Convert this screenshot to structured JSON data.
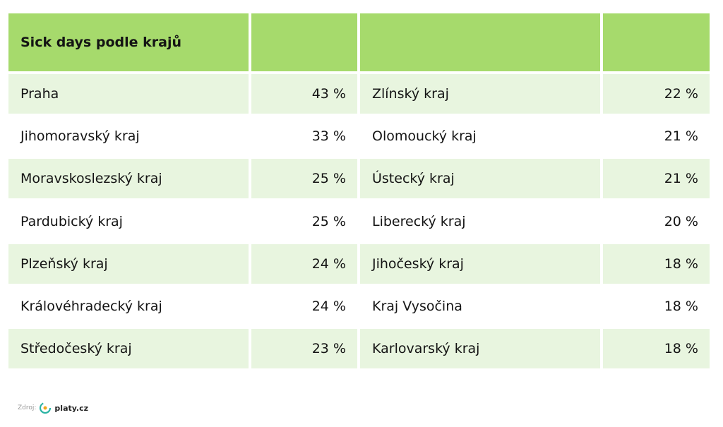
{
  "header": {
    "title": "Sick days podle krajů"
  },
  "table": {
    "rows": [
      [
        "Praha",
        "43 %",
        "Zlínský kraj",
        "22 %"
      ],
      [
        "Jihomoravský kraj",
        "33 %",
        "Olomoucký kraj",
        "21 %"
      ],
      [
        "Moravskoslezský kraj",
        "25 %",
        "Ústecký kraj",
        "21 %"
      ],
      [
        "Pardubický kraj",
        "25 %",
        "Liberecký kraj",
        "20 %"
      ],
      [
        "Plzeňský kraj",
        "24 %",
        "Jihočeský kraj",
        "18 %"
      ],
      [
        "Královéhradecký kraj",
        "24 %",
        "Kraj Vysočina",
        "18 %"
      ],
      [
        "Středočeský kraj",
        "23 %",
        "Karlovarský kraj",
        "18 %"
      ]
    ]
  },
  "footer": {
    "source_label": "Zdroj:",
    "logo_text": "platy.cz"
  }
}
